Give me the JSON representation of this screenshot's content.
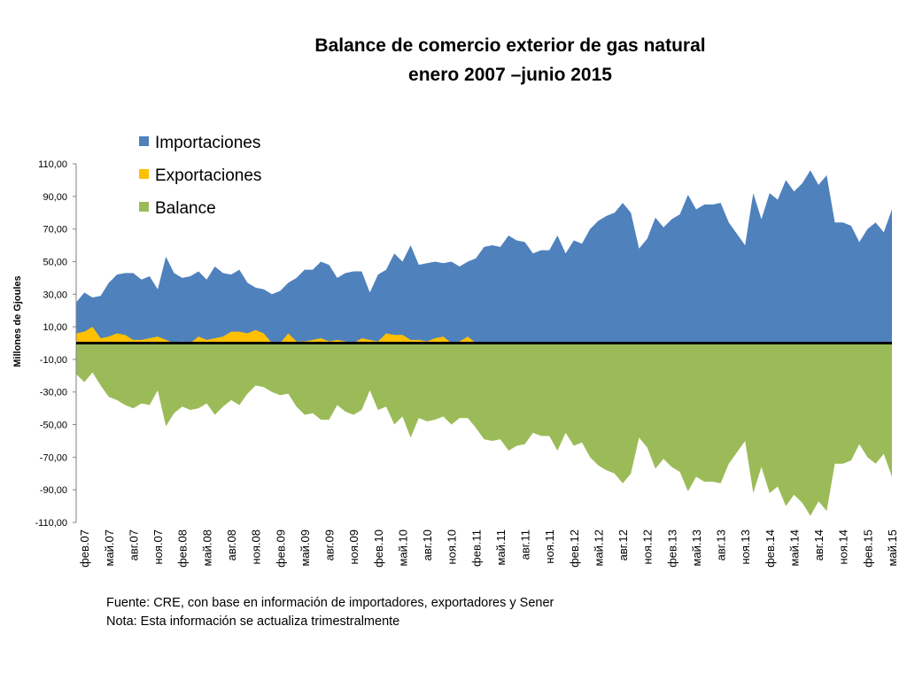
{
  "chart_data": {
    "type": "area",
    "title_lines": [
      "Balance de comercio exterior  de gas natural",
      "enero 2007 –junio 2015"
    ],
    "ylabel": "Millones de Gjoules",
    "xlabel": "",
    "ylim": [
      -110,
      110
    ],
    "y_ticks": [
      "110,00",
      "90,00",
      "70,00",
      "50,00",
      "30,00",
      "10,00",
      "-10,00",
      "-30,00",
      "-50,00",
      "-70,00",
      "-90,00",
      "-110,00"
    ],
    "y_tick_values": [
      110,
      90,
      70,
      50,
      30,
      10,
      -10,
      -30,
      -50,
      -70,
      -90,
      -110
    ],
    "x_start": "2007-01",
    "x_end": "2015-06",
    "x_tick_labels": [
      "фев.07",
      "май.07",
      "авг.07",
      "ноя.07",
      "фев.08",
      "май.08",
      "авг.08",
      "ноя.08",
      "фев.09",
      "май.09",
      "авг.09",
      "ноя.09",
      "фев.10",
      "май.10",
      "авг.10",
      "ноя.10",
      "фев.11",
      "май.11",
      "авг.11",
      "ноя.11",
      "фев.12",
      "май.12",
      "авг.12",
      "ноя.12",
      "фев.13",
      "май.13",
      "авг.13",
      "ноя.13",
      "фев.14",
      "май.14",
      "авг.14",
      "ноя.14",
      "фев.15",
      "май.15"
    ],
    "grid": false,
    "legend_position": "top-left",
    "series": [
      {
        "name": "Importaciones",
        "color": "#4f81bd",
        "values": [
          25,
          31,
          28,
          29,
          37,
          42,
          43,
          43,
          39,
          41,
          33,
          53,
          43,
          40,
          41,
          44,
          39,
          47,
          43,
          42,
          45,
          37,
          34,
          33,
          30,
          32,
          37,
          40,
          45,
          45,
          50,
          48,
          40,
          43,
          44,
          44,
          31,
          42,
          45,
          55,
          50,
          60,
          48,
          49,
          50,
          49,
          50,
          47,
          50,
          52,
          59,
          60,
          59,
          66,
          63,
          62,
          55,
          57,
          57,
          66,
          55,
          63,
          61,
          70,
          75,
          78,
          80,
          86,
          80,
          58,
          64,
          77,
          71,
          76,
          79,
          91,
          82,
          85,
          85,
          86,
          74,
          67,
          60,
          92,
          76,
          92,
          88,
          100,
          93,
          98,
          106,
          97,
          103,
          74,
          74,
          72,
          62,
          70,
          74,
          68,
          82
        ],
        "legend_order": 1
      },
      {
        "name": "Exportaciones",
        "color": "#ffc000",
        "values": [
          6,
          7,
          10,
          3,
          4,
          6,
          5,
          2,
          2,
          3,
          4,
          2,
          0,
          1,
          0,
          4,
          2,
          3,
          4,
          7,
          7,
          6,
          8,
          6,
          0,
          0,
          6,
          1,
          1,
          2,
          3,
          1,
          2,
          1,
          0,
          3,
          2,
          1,
          6,
          5,
          5,
          2,
          2,
          1,
          3,
          4,
          0,
          1,
          4,
          0,
          0,
          0,
          0,
          0,
          0,
          0,
          0,
          0,
          0,
          0,
          0,
          0,
          0,
          0,
          0,
          0,
          0,
          0,
          0,
          0,
          0,
          0,
          0,
          0,
          0,
          0,
          0,
          0,
          0,
          0,
          0,
          0,
          0,
          0,
          0,
          0,
          0,
          0,
          0,
          0,
          0,
          0,
          0,
          0,
          0,
          0,
          0,
          0,
          0,
          0,
          0
        ],
        "legend_order": 2
      },
      {
        "name": "Balance",
        "color": "#9bbb59",
        "values": [
          -19,
          -24,
          -18,
          -26,
          -33,
          -35,
          -38,
          -40,
          -37,
          -38,
          -29,
          -51,
          -43,
          -39,
          -41,
          -40,
          -37,
          -44,
          -39,
          -35,
          -38,
          -31,
          -26,
          -27,
          -30,
          -32,
          -31,
          -39,
          -44,
          -43,
          -47,
          -47,
          -38,
          -42,
          -44,
          -41,
          -29,
          -41,
          -39,
          -50,
          -45,
          -58,
          -46,
          -48,
          -47,
          -45,
          -50,
          -46,
          -46,
          -52,
          -59,
          -60,
          -59,
          -66,
          -63,
          -62,
          -55,
          -57,
          -57,
          -66,
          -55,
          -63,
          -61,
          -70,
          -75,
          -78,
          -80,
          -86,
          -80,
          -58,
          -64,
          -77,
          -71,
          -76,
          -79,
          -91,
          -82,
          -85,
          -85,
          -86,
          -74,
          -67,
          -60,
          -92,
          -76,
          -92,
          -88,
          -100,
          -93,
          -98,
          -106,
          -97,
          -103,
          -74,
          -74,
          -72,
          -62,
          -70,
          -74,
          -68,
          -82
        ],
        "legend_order": 3
      }
    ]
  },
  "footnote": {
    "source": "Fuente: CRE, con base en información de importadores, exportadores y Sener",
    "note": "Nota: Esta información se actualiza trimestralmente"
  }
}
